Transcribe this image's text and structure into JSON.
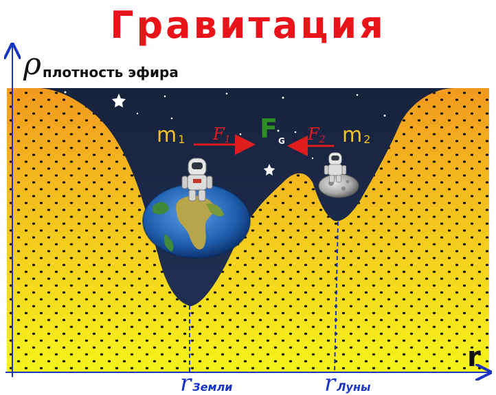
{
  "title": "Гравитация",
  "y_axis": {
    "symbol": "ρ",
    "label": "плотность эфира"
  },
  "x_axis": {
    "label": "r"
  },
  "masses": [
    {
      "symbol": "m",
      "index": "1"
    },
    {
      "symbol": "m",
      "index": "2"
    }
  ],
  "forces": {
    "f1": {
      "symbol": "F",
      "index": "1"
    },
    "f2": {
      "symbol": "F",
      "index": "2"
    },
    "fg": {
      "symbol": "F",
      "index": "G"
    }
  },
  "markers": {
    "earth": {
      "symbol": "r",
      "index": "Земли"
    },
    "moon": {
      "symbol": "r",
      "index": "Луны"
    }
  },
  "colors": {
    "title": "#e8141a",
    "space": "#1c2a48",
    "ether_top": "#f29a1f",
    "ether_bottom": "#f4f21c",
    "axis": "#1a35c4",
    "force_arrow": "#e01d1d",
    "fg": "#2e8f24",
    "mass": "#f2c12e"
  },
  "icons": [
    "astronaut-icon",
    "earth-icon",
    "moon-icon",
    "star-icon"
  ]
}
